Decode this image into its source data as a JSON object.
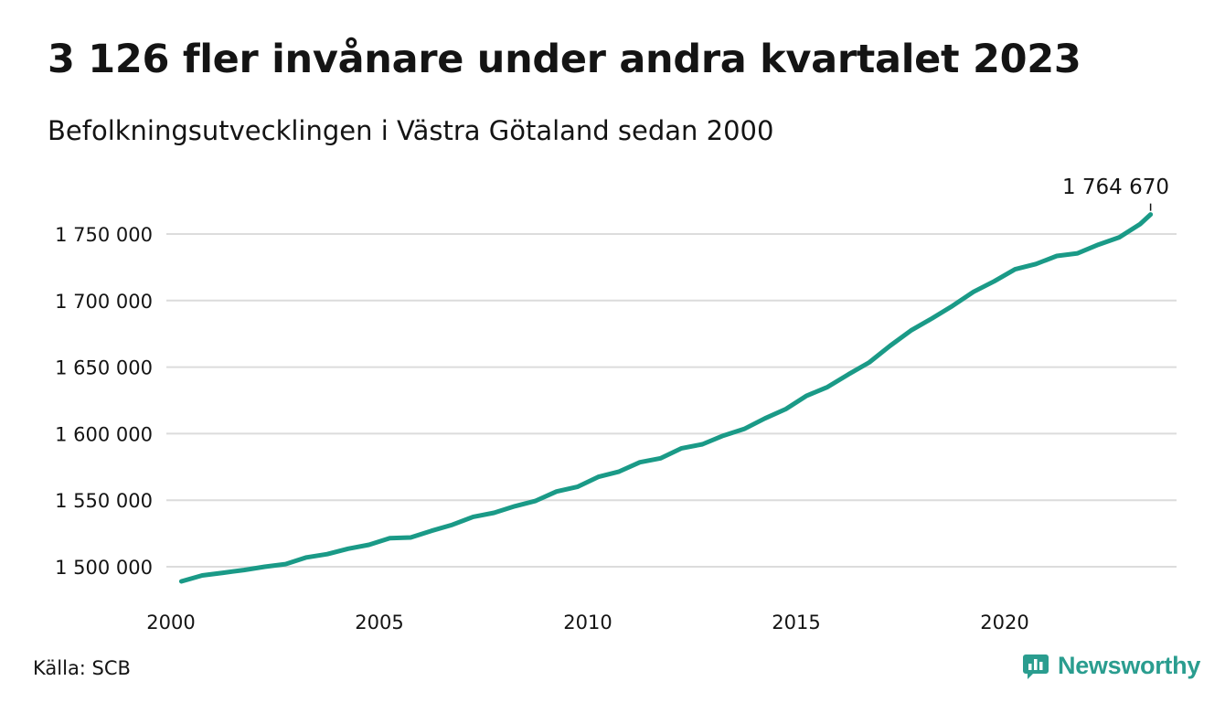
{
  "header": {
    "title": "3 126 fler invånare under andra kvartalet 2023",
    "subtitle": "Befolkningsutvecklingen i Västra Götaland sedan 2000"
  },
  "footer": {
    "source": "Källa: SCB",
    "brand": "Newsworthy"
  },
  "colors": {
    "line": "#1a9a87",
    "grid": "#dcdcdc",
    "text": "#141414",
    "brand": "#2a9d8f"
  },
  "chart_data": {
    "type": "line",
    "title": "3 126 fler invånare under andra kvartalet 2023",
    "subtitle": "Befolkningsutvecklingen i Västra Götaland sedan 2000",
    "xlabel": "",
    "ylabel": "",
    "grid": true,
    "xlim": [
      2000,
      2024.4
    ],
    "ylim": [
      1485000,
      1775000
    ],
    "x_ticks": [
      2000,
      2005,
      2010,
      2015,
      2020
    ],
    "x_tick_labels": [
      "2000",
      "2005",
      "2010",
      "2015",
      "2020"
    ],
    "y_ticks": [
      1500000,
      1550000,
      1600000,
      1650000,
      1700000,
      1750000
    ],
    "y_tick_labels": [
      "1 500 000",
      "1 550 000",
      "1 600 000",
      "1 650 000",
      "1 700 000",
      "1 750 000"
    ],
    "annotation": {
      "x": 2023.5,
      "y": 1764670,
      "text": "1 764 670"
    },
    "series": [
      {
        "points": [
          [
            2000.25,
            1489000
          ],
          [
            2000.75,
            1493500
          ],
          [
            2001.25,
            1495500
          ],
          [
            2001.75,
            1497500
          ],
          [
            2002.25,
            1500000
          ],
          [
            2002.75,
            1502000
          ],
          [
            2003.25,
            1507000
          ],
          [
            2003.75,
            1509500
          ],
          [
            2004.25,
            1513500
          ],
          [
            2004.75,
            1516500
          ],
          [
            2005.25,
            1521500
          ],
          [
            2005.75,
            1522000
          ],
          [
            2006.25,
            1527000
          ],
          [
            2006.75,
            1531500
          ],
          [
            2007.25,
            1537500
          ],
          [
            2007.75,
            1540500
          ],
          [
            2008.25,
            1545500
          ],
          [
            2008.75,
            1549500
          ],
          [
            2009.25,
            1556500
          ],
          [
            2009.75,
            1560000
          ],
          [
            2010.25,
            1567500
          ],
          [
            2010.75,
            1571500
          ],
          [
            2011.25,
            1578500
          ],
          [
            2011.75,
            1581500
          ],
          [
            2012.25,
            1589000
          ],
          [
            2012.75,
            1592000
          ],
          [
            2013.25,
            1598500
          ],
          [
            2013.75,
            1603500
          ],
          [
            2014.25,
            1611500
          ],
          [
            2014.75,
            1618500
          ],
          [
            2015.25,
            1628500
          ],
          [
            2015.75,
            1635000
          ],
          [
            2016.25,
            1644500
          ],
          [
            2016.75,
            1653500
          ],
          [
            2017.25,
            1666000
          ],
          [
            2017.75,
            1677500
          ],
          [
            2018.25,
            1686500
          ],
          [
            2018.75,
            1696000
          ],
          [
            2019.25,
            1706500
          ],
          [
            2019.75,
            1714500
          ],
          [
            2020.25,
            1723500
          ],
          [
            2020.75,
            1727500
          ],
          [
            2021.25,
            1733500
          ],
          [
            2021.75,
            1735500
          ],
          [
            2022.25,
            1742000
          ],
          [
            2022.75,
            1747500
          ],
          [
            2023.25,
            1757500
          ],
          [
            2023.5,
            1764670
          ]
        ]
      }
    ]
  }
}
